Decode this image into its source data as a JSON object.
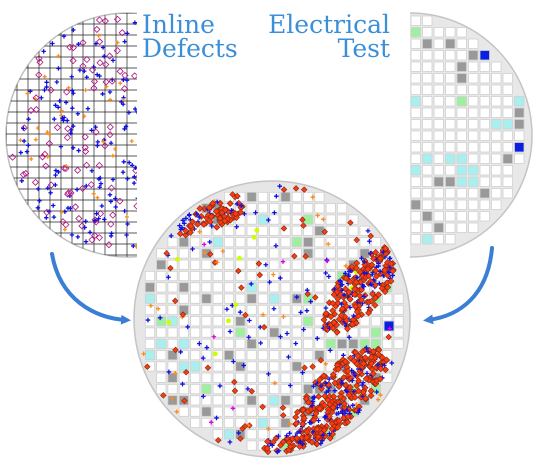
{
  "captions": {
    "inline": {
      "line1": "Inline",
      "line2": "Defects"
    },
    "electrical": {
      "line1": "Electrical",
      "line2": "Test"
    }
  },
  "colors": {
    "caption": "#3b8fd9",
    "arrow": "#3a7fd5",
    "wafer_fill": "#e6e6e6",
    "wafer_edge": "#c4c4c4",
    "die_outline": "#d0d0d0",
    "grid_line": "#222222",
    "defect_blue": "#1010e0",
    "defect_red": "#ff3a10",
    "defect_orange": "#ff8c1a",
    "defect_magenta": "#e000e0",
    "defect_lime": "#ccff00",
    "bin_gray": "#999999",
    "bin_cyan": "#a8f0f0",
    "bin_green": "#9ef09e",
    "bin_blue": "#0b1fe0",
    "bin_magenta": "#f080f0"
  },
  "legend_semantics": {
    "left_map": "inline-defects-wafer-map",
    "right_map": "electrical-test-bin-map",
    "bottom_map": "overlay-wafer-map",
    "arrows": [
      "curved-arrow-left-to-overlay",
      "curved-arrow-right-to-overlay"
    ]
  }
}
